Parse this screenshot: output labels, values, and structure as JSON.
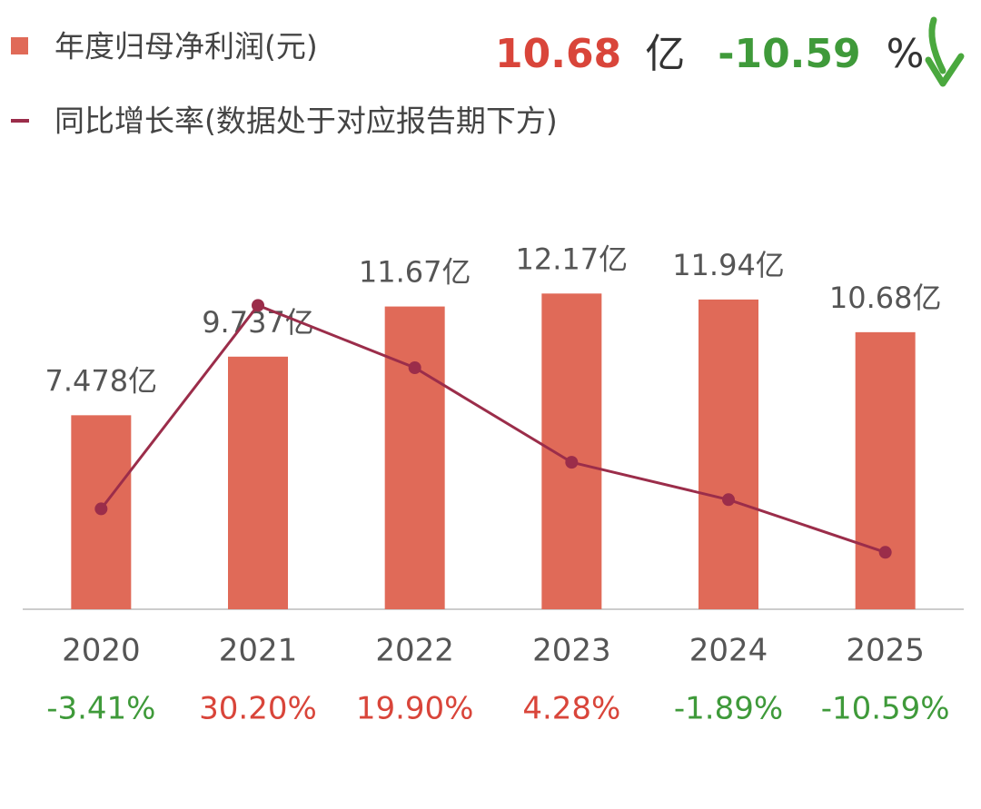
{
  "chart_data": {
    "type": "bar",
    "headline": {
      "value": 10.68,
      "unit": "亿",
      "change": -10.59,
      "change_unit": "%"
    },
    "categories": [
      "2020",
      "2021",
      "2022",
      "2023",
      "2024",
      "2025"
    ],
    "series": [
      {
        "name": "年度归母净利润(元)",
        "color": "#e06a58",
        "values": [
          7.478,
          9.737,
          11.67,
          12.17,
          11.94,
          10.68
        ],
        "value_labels": [
          "7.478亿",
          "9.737亿",
          "11.67亿",
          "12.17亿",
          "11.94亿",
          "10.68亿"
        ]
      },
      {
        "name": "同比增长率(数据处于对应报告期下方)",
        "type": "line",
        "axis": "y2",
        "color": "#9b2d4a",
        "values": [
          -3.41,
          30.2,
          19.9,
          4.28,
          -1.89,
          -10.59
        ],
        "value_labels": [
          "-3.41%",
          "30.20%",
          "19.90%",
          "4.28%",
          "-1.89%",
          "-10.59%"
        ]
      }
    ],
    "ylim": [
      0,
      14
    ],
    "y2lim": [
      -20,
      40
    ],
    "positive_color": "#d9453a",
    "negative_color": "#3f9a3a"
  }
}
